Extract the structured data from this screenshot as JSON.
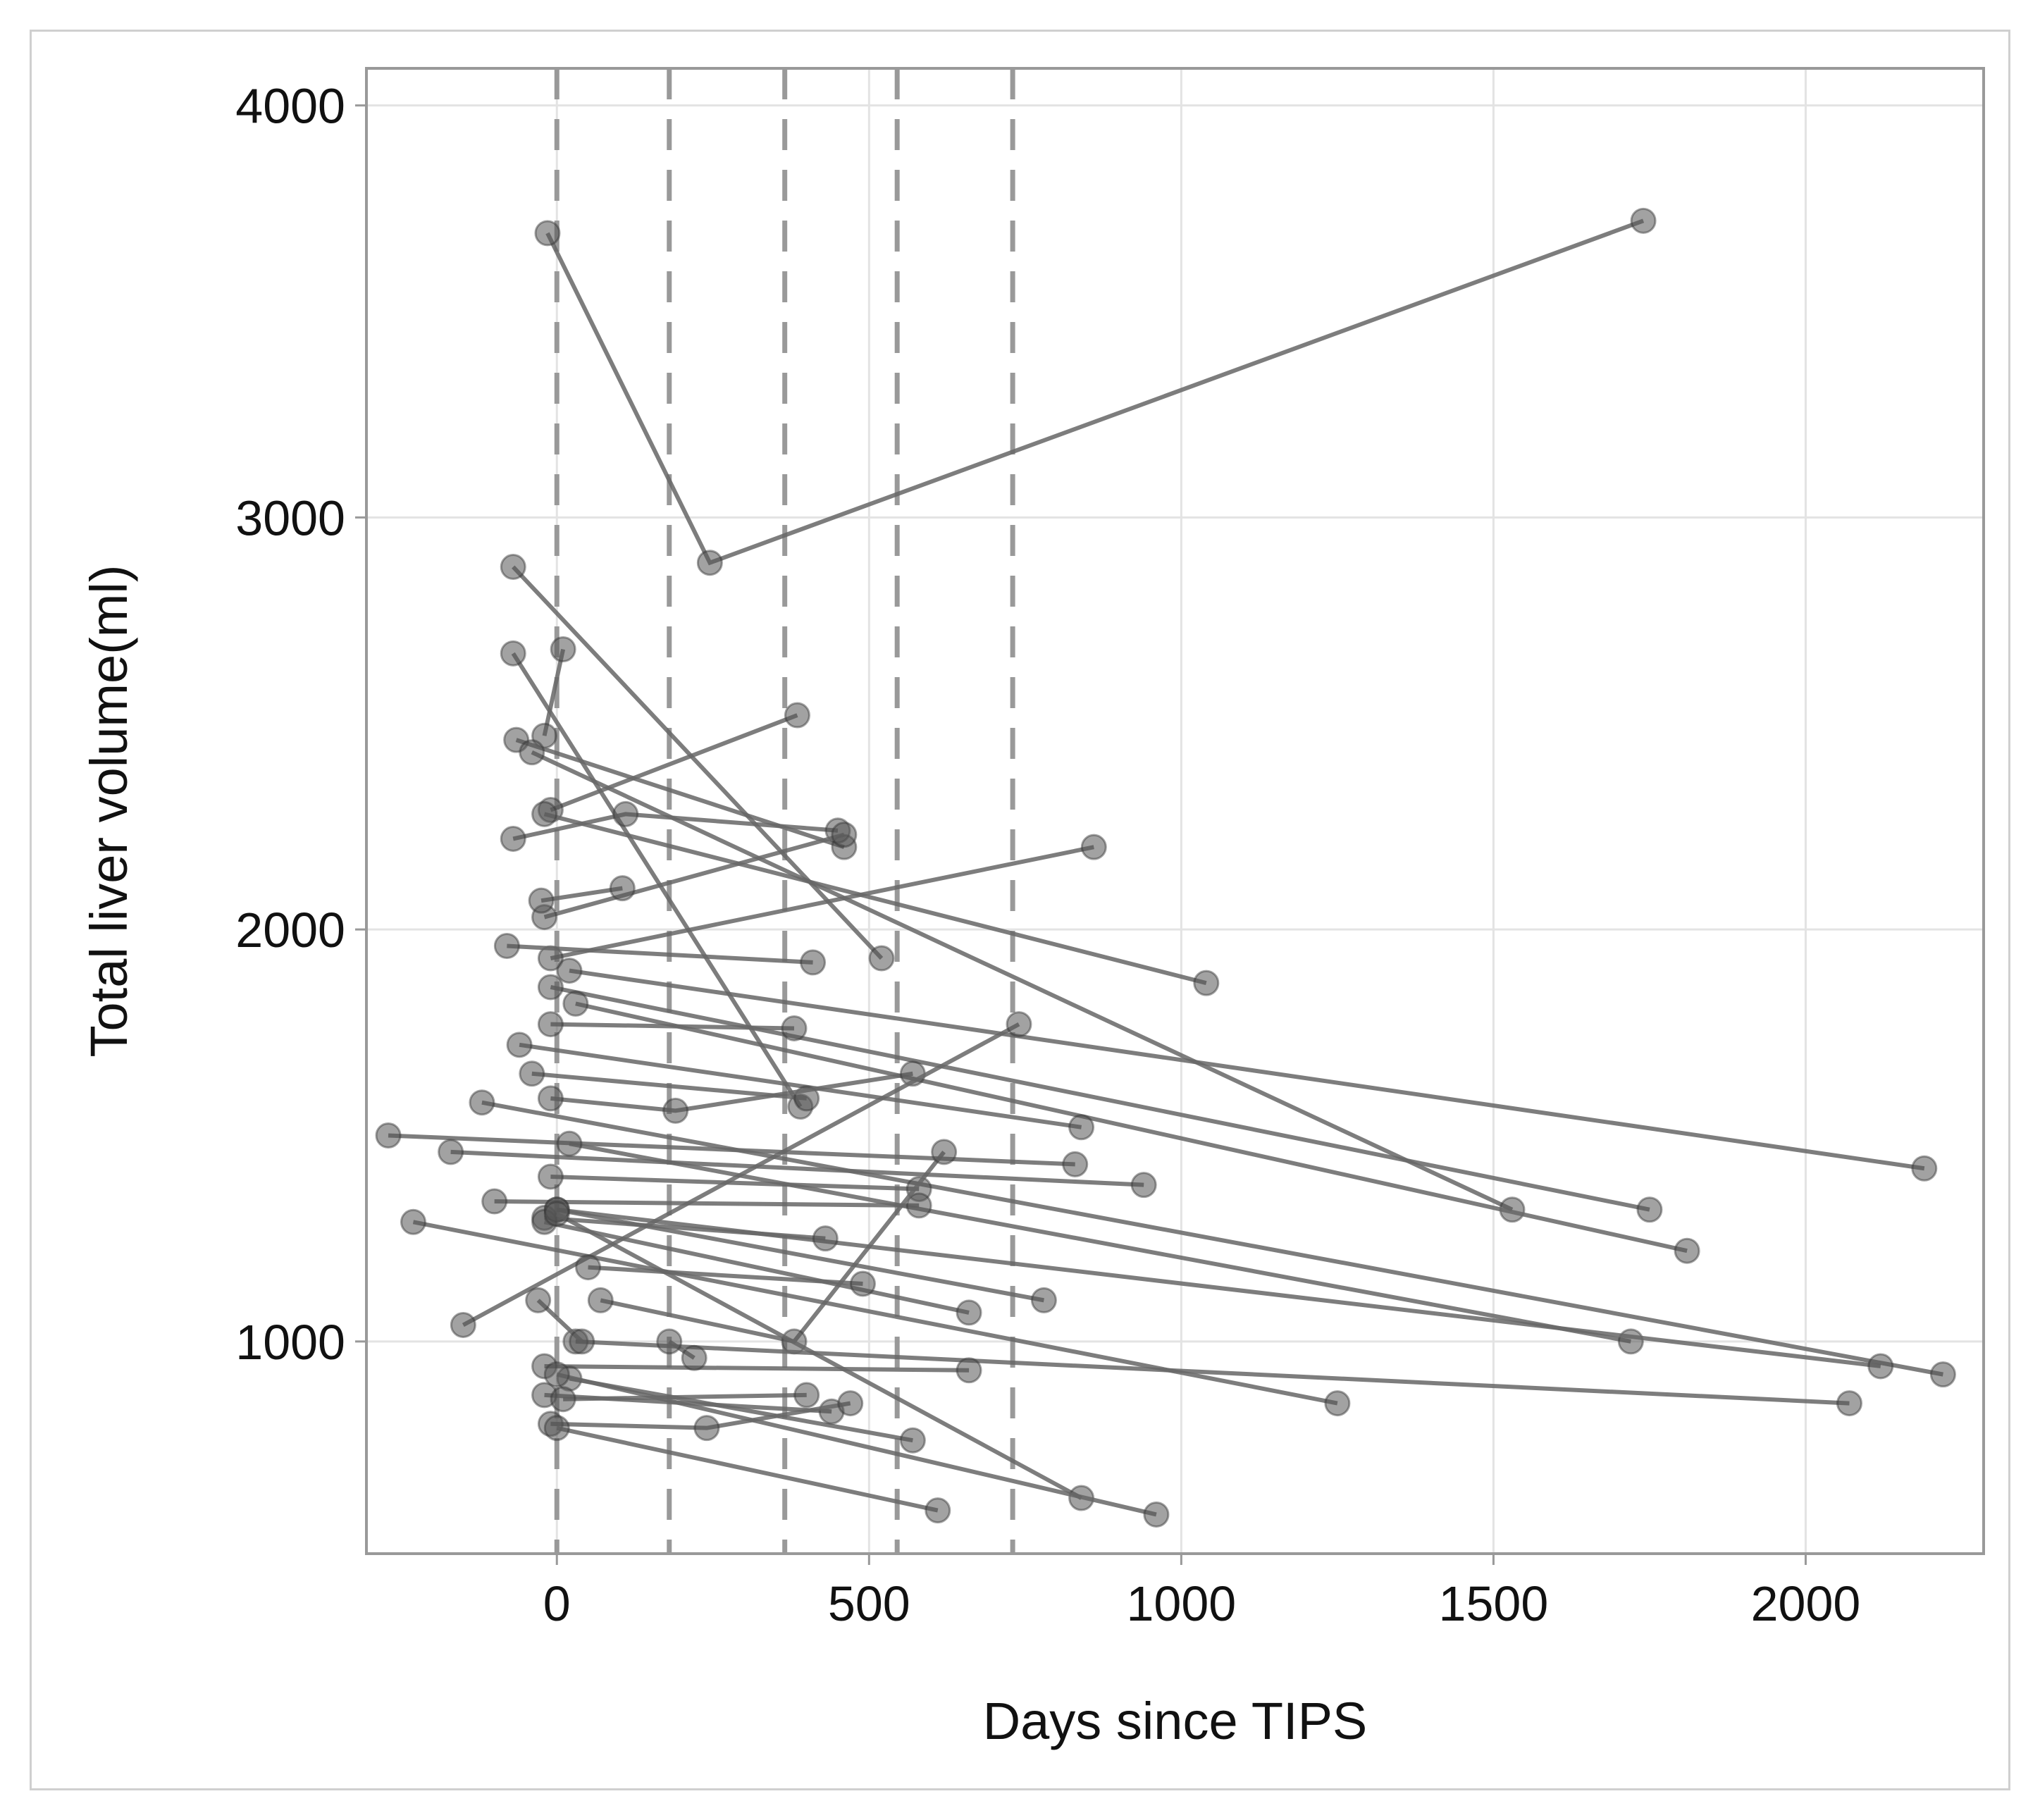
{
  "chart_data": {
    "type": "line",
    "title": "",
    "xlabel": "Days since TIPS",
    "ylabel": "Total liver volume(ml)",
    "xlim": [
      -305,
      2285
    ],
    "ylim": [
      485,
      4090
    ],
    "xticks": [
      0,
      500,
      1000,
      1500,
      2000
    ],
    "yticks": [
      1000,
      2000,
      3000,
      4000
    ],
    "grid": true,
    "reference_lines_x": [
      180,
      365,
      545,
      730
    ],
    "colors": {
      "line": "#666666",
      "marker": "#555555",
      "reference_line": "#999999",
      "grid": "#e3e3e3",
      "frame": "#999999"
    },
    "series": [
      {
        "points": [
          [
            -15,
            3690
          ],
          [
            245,
            2890
          ],
          [
            1740,
            3720
          ]
        ]
      },
      {
        "points": [
          [
            -70,
            2880
          ],
          [
            520,
            1930
          ]
        ]
      },
      {
        "points": [
          [
            -70,
            2670
          ],
          [
            390,
            1570
          ]
        ]
      },
      {
        "points": [
          [
            10,
            2680
          ],
          [
            -20,
            2470
          ]
        ]
      },
      {
        "points": [
          [
            -65,
            2460
          ],
          [
            460,
            2200
          ]
        ]
      },
      {
        "points": [
          [
            -40,
            2430
          ],
          [
            1530,
            1320
          ]
        ]
      },
      {
        "points": [
          [
            -10,
            2290
          ],
          [
            385,
            2520
          ]
        ]
      },
      {
        "points": [
          [
            -70,
            2220
          ],
          [
            110,
            2280
          ],
          [
            450,
            2240
          ]
        ]
      },
      {
        "points": [
          [
            -20,
            2280
          ],
          [
            1040,
            1870
          ]
        ]
      },
      {
        "points": [
          [
            -20,
            2030
          ],
          [
            460,
            2230
          ]
        ]
      },
      {
        "points": [
          [
            -25,
            2070
          ],
          [
            105,
            2100
          ]
        ]
      },
      {
        "points": [
          [
            -10,
            1930
          ],
          [
            860,
            2200
          ]
        ]
      },
      {
        "points": [
          [
            -80,
            1960
          ],
          [
            410,
            1920
          ]
        ]
      },
      {
        "points": [
          [
            20,
            1900
          ],
          [
            2190,
            1420
          ]
        ]
      },
      {
        "points": [
          [
            -10,
            1860
          ],
          [
            1750,
            1320
          ]
        ]
      },
      {
        "points": [
          [
            30,
            1820
          ],
          [
            1810,
            1220
          ]
        ]
      },
      {
        "points": [
          [
            -10,
            1770
          ],
          [
            380,
            1760
          ]
        ]
      },
      {
        "points": [
          [
            -60,
            1720
          ],
          [
            840,
            1520
          ]
        ]
      },
      {
        "points": [
          [
            -40,
            1650
          ],
          [
            400,
            1590
          ]
        ]
      },
      {
        "points": [
          [
            -10,
            1590
          ],
          [
            190,
            1560
          ],
          [
            570,
            1650
          ]
        ]
      },
      {
        "points": [
          [
            -120,
            1580
          ],
          [
            2220,
            920
          ]
        ]
      },
      {
        "points": [
          [
            -270,
            1500
          ],
          [
            830,
            1430
          ]
        ]
      },
      {
        "points": [
          [
            -170,
            1460
          ],
          [
            940,
            1380
          ]
        ]
      },
      {
        "points": [
          [
            20,
            1480
          ],
          [
            1720,
            1000
          ]
        ]
      },
      {
        "points": [
          [
            -10,
            1400
          ],
          [
            580,
            1370
          ]
        ]
      },
      {
        "points": [
          [
            -100,
            1340
          ],
          [
            580,
            1330
          ]
        ]
      },
      {
        "points": [
          [
            0,
            1320
          ],
          [
            2120,
            940
          ]
        ]
      },
      {
        "points": [
          [
            -20,
            1300
          ],
          [
            430,
            1250
          ]
        ]
      },
      {
        "points": [
          [
            -20,
            1290
          ],
          [
            660,
            1070
          ]
        ]
      },
      {
        "points": [
          [
            -230,
            1290
          ],
          [
            1250,
            850
          ]
        ]
      },
      {
        "points": [
          [
            -150,
            1040
          ],
          [
            740,
            1770
          ]
        ]
      },
      {
        "points": [
          [
            0,
            1320
          ],
          [
            780,
            1100
          ]
        ]
      },
      {
        "points": [
          [
            50,
            1180
          ],
          [
            490,
            1140
          ]
        ]
      },
      {
        "points": [
          [
            70,
            1100
          ],
          [
            380,
            1000
          ],
          [
            620,
            1460
          ]
        ]
      },
      {
        "points": [
          [
            0,
            1310
          ],
          [
            840,
            620
          ]
        ]
      },
      {
        "points": [
          [
            30,
            1000
          ],
          [
            2070,
            850
          ]
        ]
      },
      {
        "points": [
          [
            -20,
            940
          ],
          [
            660,
            930
          ]
        ]
      },
      {
        "points": [
          [
            20,
            910
          ],
          [
            570,
            760
          ]
        ]
      },
      {
        "points": [
          [
            -20,
            870
          ],
          [
            440,
            830
          ]
        ]
      },
      {
        "points": [
          [
            -10,
            800
          ],
          [
            240,
            790
          ],
          [
            470,
            850
          ]
        ]
      },
      {
        "points": [
          [
            10,
            860
          ],
          [
            400,
            870
          ]
        ]
      },
      {
        "points": [
          [
            0,
            790
          ],
          [
            610,
            590
          ]
        ]
      },
      {
        "points": [
          [
            0,
            920
          ],
          [
            960,
            580
          ]
        ]
      },
      {
        "points": [
          [
            180,
            1000
          ],
          [
            220,
            960
          ]
        ]
      },
      {
        "points": [
          [
            -30,
            1100
          ],
          [
            40,
            1000
          ]
        ]
      }
    ]
  }
}
